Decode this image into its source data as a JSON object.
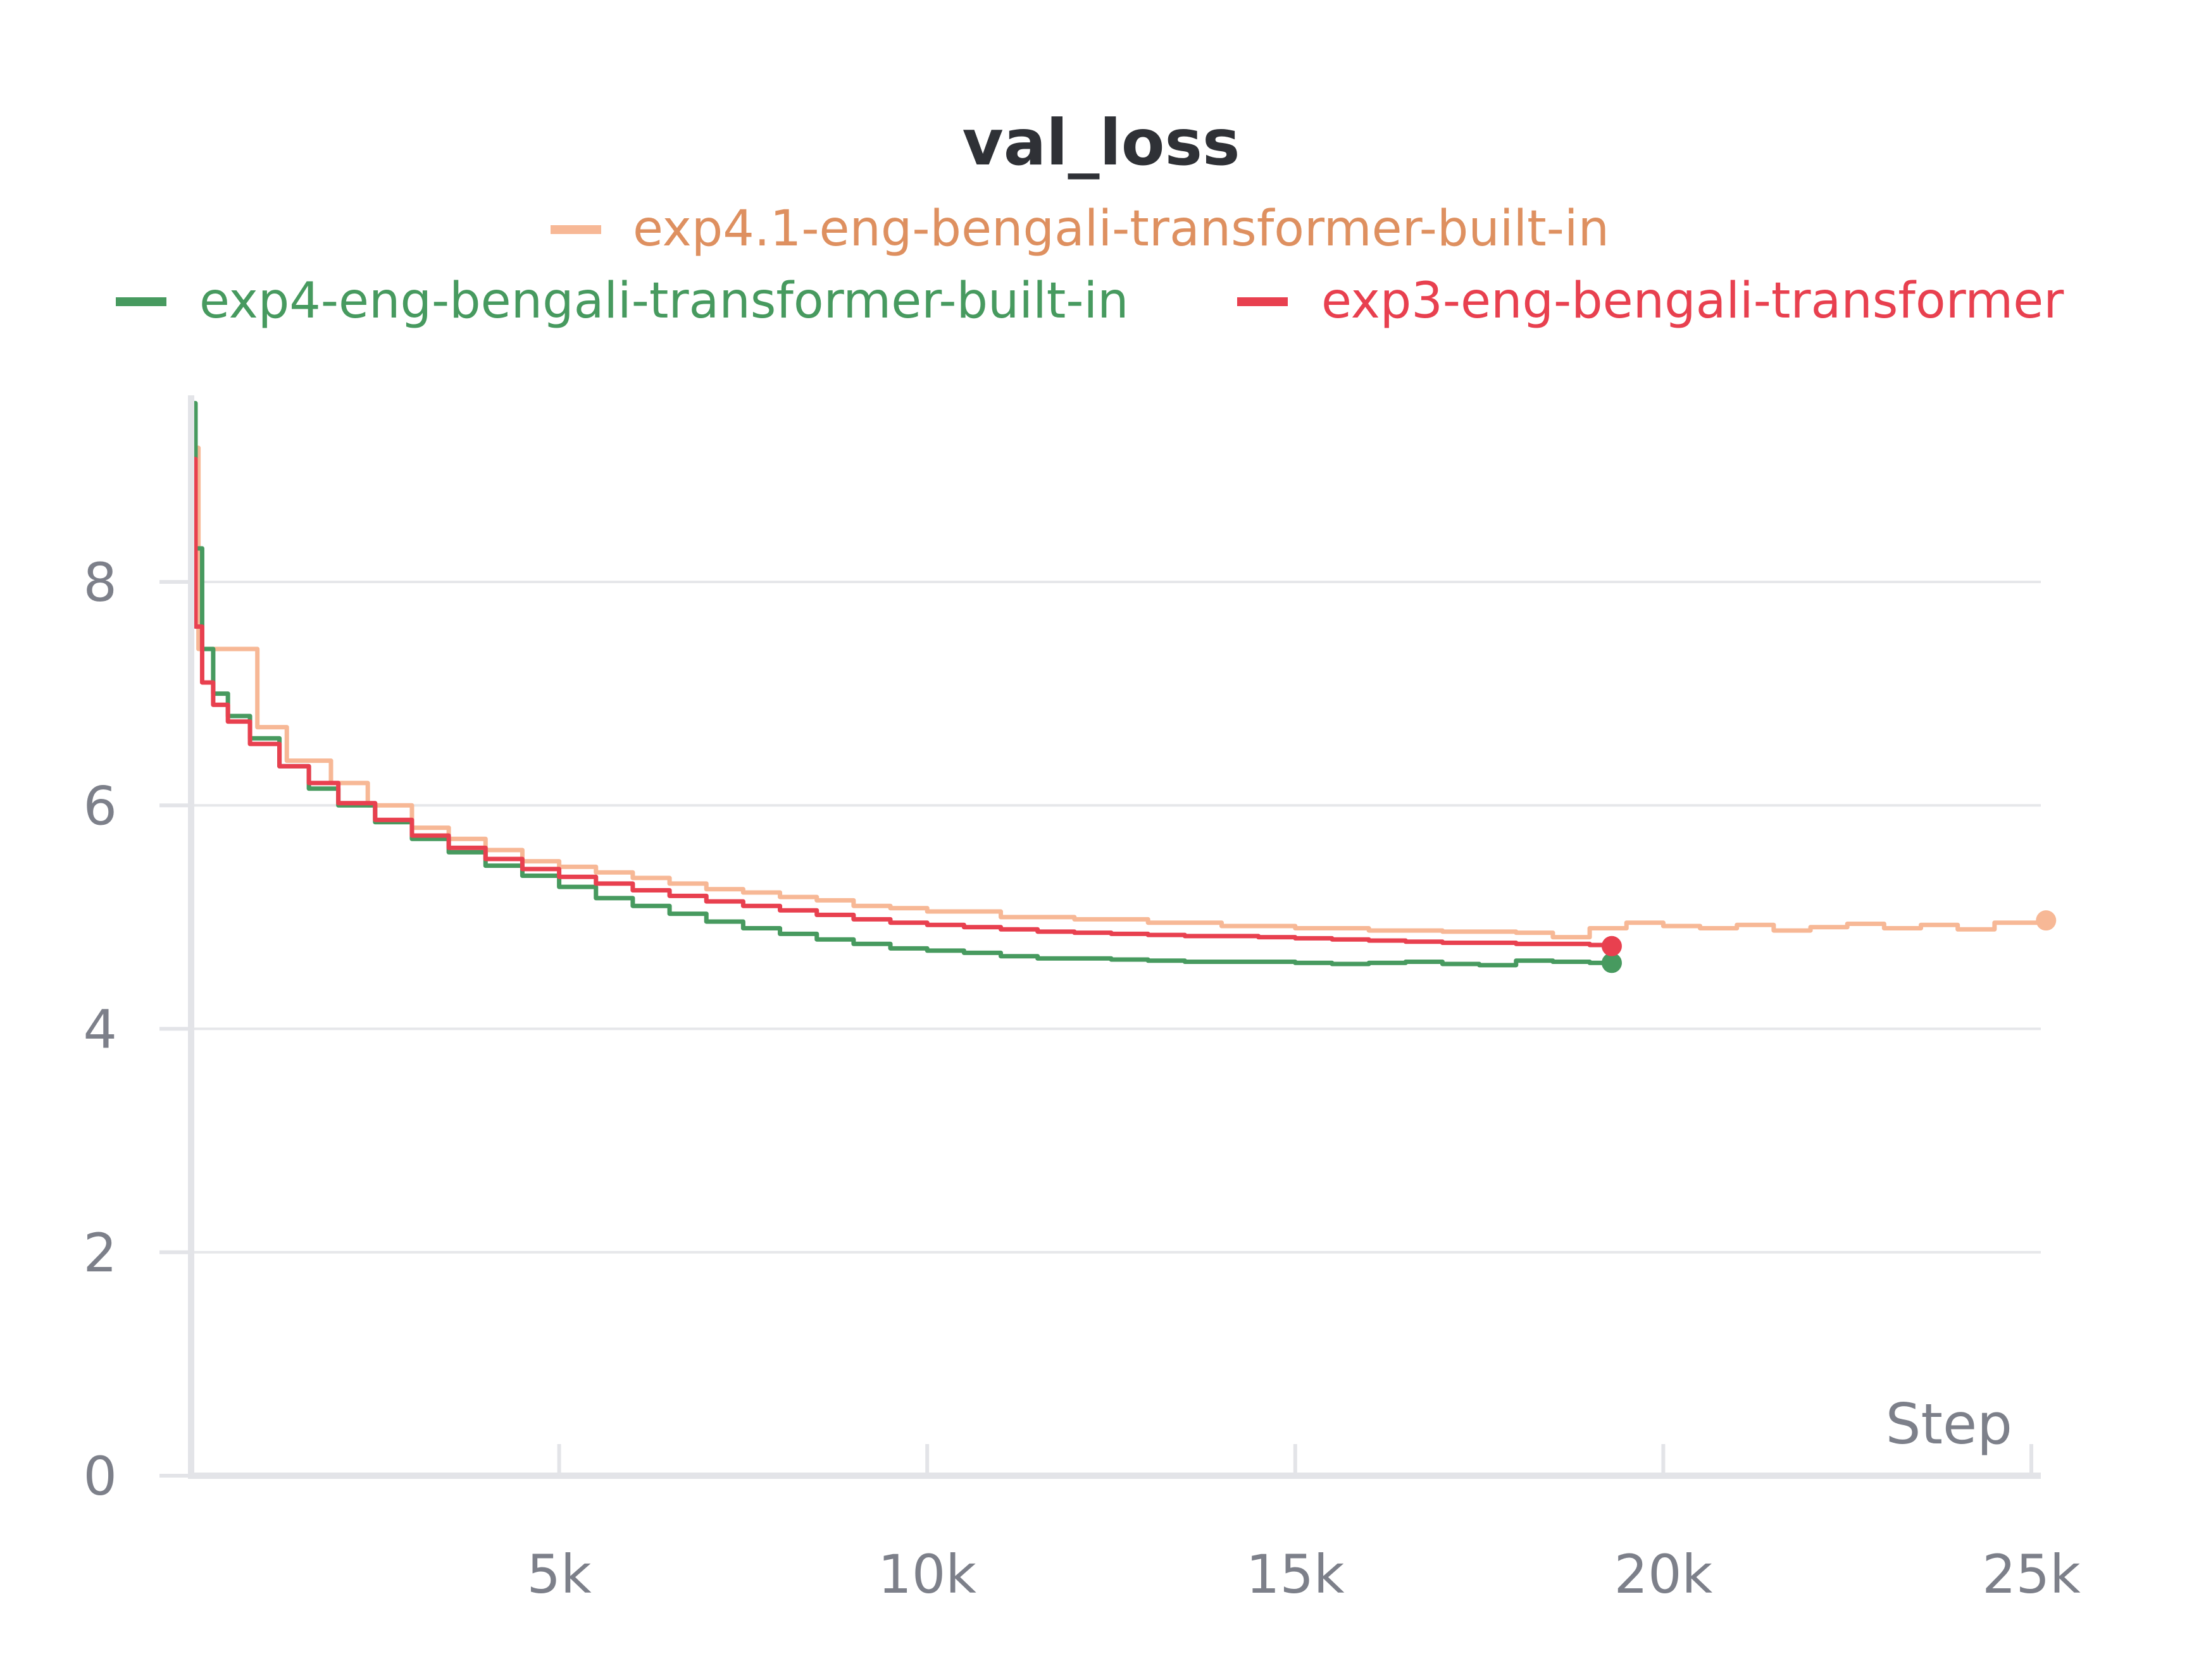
{
  "chart_data": {
    "type": "line",
    "title": "val_loss",
    "xlabel": "Step",
    "ylabel": "",
    "xlim": [
      0,
      25200
    ],
    "ylim": [
      0,
      9.6
    ],
    "x_ticks": [
      {
        "value": 5000,
        "label": "5k"
      },
      {
        "value": 10000,
        "label": "10k"
      },
      {
        "value": 15000,
        "label": "15k"
      },
      {
        "value": 20000,
        "label": "20k"
      },
      {
        "value": 25000,
        "label": "25k"
      }
    ],
    "y_ticks": [
      {
        "value": 0,
        "label": "0"
      },
      {
        "value": 2,
        "label": "2"
      },
      {
        "value": 4,
        "label": "4"
      },
      {
        "value": 6,
        "label": "6"
      },
      {
        "value": 8,
        "label": "8"
      }
    ],
    "grid": true,
    "legend_position": "top",
    "series": [
      {
        "name": "exp4.1-eng-bengali-transformer-built-in",
        "color": "#f7b896",
        "text_color": "#de9060",
        "step": true,
        "x": [
          0,
          100,
          400,
          900,
          1300,
          1900,
          2400,
          3000,
          3500,
          4000,
          4500,
          5000,
          5500,
          6000,
          6500,
          7000,
          7500,
          8000,
          8500,
          9000,
          9500,
          10000,
          11000,
          12000,
          13000,
          14000,
          15000,
          16000,
          17000,
          18000,
          18500,
          19000,
          19500,
          20000,
          20500,
          21000,
          21500,
          22000,
          22500,
          23000,
          23500,
          24000,
          24500,
          25200
        ],
        "y": [
          9.2,
          7.4,
          7.4,
          6.7,
          6.4,
          6.2,
          6.0,
          5.8,
          5.7,
          5.6,
          5.5,
          5.45,
          5.4,
          5.35,
          5.3,
          5.25,
          5.22,
          5.18,
          5.15,
          5.1,
          5.08,
          5.05,
          5.0,
          4.98,
          4.95,
          4.92,
          4.9,
          4.88,
          4.87,
          4.86,
          4.82,
          4.9,
          4.95,
          4.92,
          4.9,
          4.93,
          4.88,
          4.91,
          4.94,
          4.9,
          4.93,
          4.89,
          4.95,
          4.97
        ]
      },
      {
        "name": "exp4-eng-bengali-transformer-built-in",
        "color": "#479a5f",
        "text_color": "#479a5f",
        "step": true,
        "x": [
          0,
          60,
          150,
          300,
          500,
          800,
          1200,
          1600,
          2000,
          2500,
          3000,
          3500,
          4000,
          4500,
          5000,
          5500,
          6000,
          6500,
          7000,
          7500,
          8000,
          8500,
          9000,
          9500,
          10000,
          10500,
          11000,
          11500,
          12000,
          12500,
          13000,
          13500,
          14000,
          14500,
          15000,
          15500,
          16000,
          16500,
          17000,
          17500,
          18000,
          18500,
          19000,
          19300
        ],
        "y": [
          9.6,
          8.3,
          7.4,
          7.0,
          6.8,
          6.6,
          6.35,
          6.15,
          6.0,
          5.85,
          5.7,
          5.58,
          5.46,
          5.37,
          5.27,
          5.17,
          5.1,
          5.03,
          4.96,
          4.9,
          4.85,
          4.8,
          4.76,
          4.72,
          4.7,
          4.68,
          4.65,
          4.63,
          4.63,
          4.62,
          4.61,
          4.6,
          4.6,
          4.6,
          4.59,
          4.58,
          4.59,
          4.6,
          4.58,
          4.57,
          4.61,
          4.6,
          4.59,
          4.59
        ]
      },
      {
        "name": "exp3-eng-bengali-transformer",
        "color": "#e8404f",
        "text_color": "#e8404f",
        "step": true,
        "x": [
          0,
          60,
          150,
          300,
          500,
          800,
          1200,
          1600,
          2000,
          2500,
          3000,
          3500,
          4000,
          4500,
          5000,
          5500,
          6000,
          6500,
          7000,
          7500,
          8000,
          8500,
          9000,
          9500,
          10000,
          10500,
          11000,
          11500,
          12000,
          12500,
          13000,
          13500,
          14000,
          14500,
          15000,
          15500,
          16000,
          16500,
          17000,
          17500,
          18000,
          18500,
          19000,
          19300
        ],
        "y": [
          9.1,
          7.6,
          7.1,
          6.9,
          6.75,
          6.55,
          6.35,
          6.2,
          6.02,
          5.87,
          5.73,
          5.62,
          5.52,
          5.43,
          5.36,
          5.3,
          5.24,
          5.19,
          5.14,
          5.1,
          5.06,
          5.02,
          4.98,
          4.95,
          4.93,
          4.91,
          4.89,
          4.87,
          4.86,
          4.85,
          4.84,
          4.83,
          4.83,
          4.82,
          4.81,
          4.8,
          4.79,
          4.78,
          4.77,
          4.77,
          4.76,
          4.76,
          4.75,
          4.74
        ]
      }
    ]
  }
}
